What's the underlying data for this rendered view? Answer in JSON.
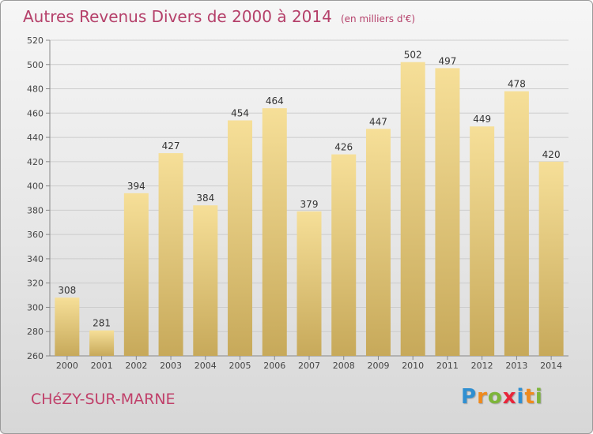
{
  "title": "Autres Revenus Divers de 2000 à 2014",
  "unit_note": "(en milliers d'€)",
  "town": "CHéZY-SUR-MARNE",
  "logo": {
    "letters": [
      "P",
      "r",
      "o",
      "x",
      "i",
      "t",
      "i"
    ],
    "colors": [
      "#2f8fd1",
      "#f08a1c",
      "#7db53a",
      "#e8253a",
      "#2f8fd1",
      "#f08a1c",
      "#7db53a"
    ]
  },
  "colors": {
    "title": "#b5406a",
    "bar_light": "#f6df98",
    "bar_dark": "#c7a95a",
    "grid": "#cccccc"
  },
  "chart_data": {
    "type": "bar",
    "categories": [
      "2000",
      "2001",
      "2002",
      "2003",
      "2004",
      "2005",
      "2006",
      "2007",
      "2008",
      "2009",
      "2010",
      "2011",
      "2012",
      "2013",
      "2014"
    ],
    "values": [
      308,
      281,
      394,
      427,
      384,
      454,
      464,
      379,
      426,
      447,
      502,
      497,
      449,
      478,
      420
    ],
    "ylim": [
      260,
      520
    ],
    "yticks": [
      260,
      280,
      300,
      320,
      340,
      360,
      380,
      400,
      420,
      440,
      460,
      480,
      500,
      520
    ],
    "grid": true
  }
}
